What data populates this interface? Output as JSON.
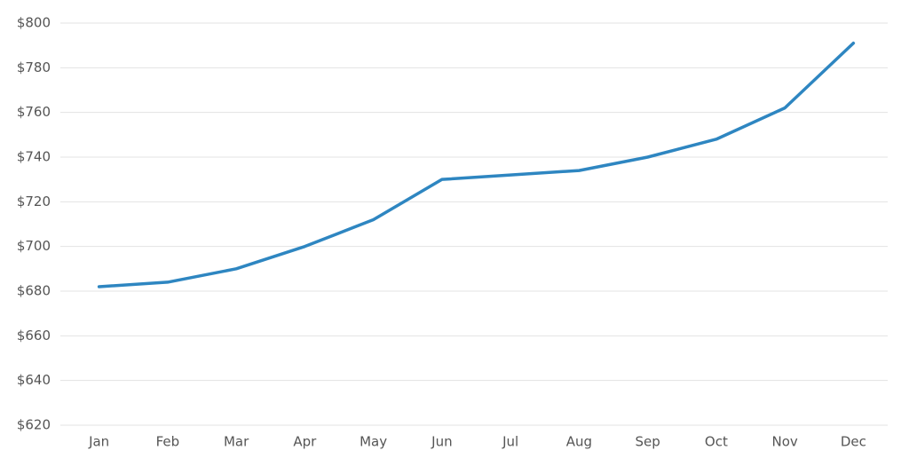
{
  "chart_data": {
    "type": "line",
    "categories": [
      "Jan",
      "Feb",
      "Mar",
      "Apr",
      "May",
      "Jun",
      "Jul",
      "Aug",
      "Sep",
      "Oct",
      "Nov",
      "Dec"
    ],
    "series": [
      {
        "color": "#2e86c1",
        "values": [
          682,
          684,
          690,
          700,
          712,
          730,
          732,
          734,
          740,
          748,
          762,
          791
        ]
      }
    ],
    "ylim": [
      620,
      800
    ],
    "yticks": [
      {
        "value": 620,
        "label": "$620"
      },
      {
        "value": 640,
        "label": "$640"
      },
      {
        "value": 660,
        "label": "$660"
      },
      {
        "value": 680,
        "label": "$680"
      },
      {
        "value": 700,
        "label": "$700"
      },
      {
        "value": 720,
        "label": "$720"
      },
      {
        "value": 740,
        "label": "$740"
      },
      {
        "value": 760,
        "label": "$760"
      },
      {
        "value": 780,
        "label": "$780"
      },
      {
        "value": 800,
        "label": "$800"
      }
    ],
    "grid": true
  }
}
